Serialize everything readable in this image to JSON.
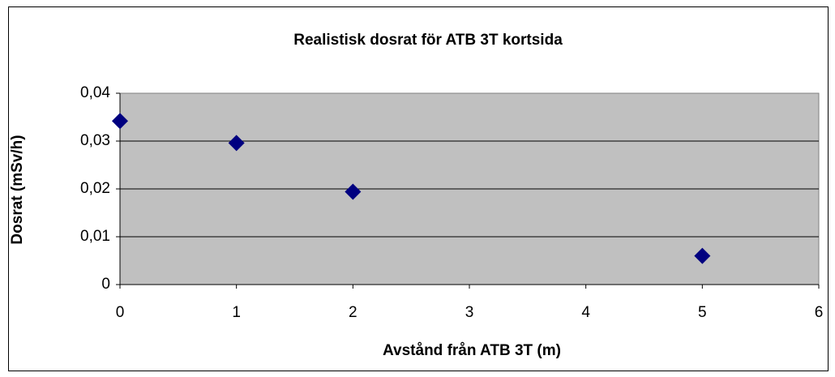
{
  "chart_data": {
    "type": "scatter",
    "title": "Realistisk dosrat för ATB 3T kortsida",
    "x_label": "Avstånd från ATB 3T (m)",
    "y_label": "Dosrat (mSv/h)",
    "series": [
      {
        "name": "Dosrat",
        "color": "#000080",
        "x": [
          0,
          1,
          2,
          5
        ],
        "values": [
          0.0342,
          0.0296,
          0.0194,
          0.006
        ]
      }
    ],
    "xlim": [
      0,
      6
    ],
    "xticks": [
      0,
      1,
      2,
      3,
      4,
      5,
      6
    ],
    "ylim": [
      0,
      0.04
    ],
    "yticks": [
      0,
      {
        "value": 0.01,
        "label": "0,01"
      },
      {
        "value": 0.02,
        "label": "0,02"
      },
      {
        "value": 0.03,
        "label": "0,03"
      },
      {
        "value": 0.04,
        "label": "0,04"
      }
    ],
    "grid": true
  }
}
